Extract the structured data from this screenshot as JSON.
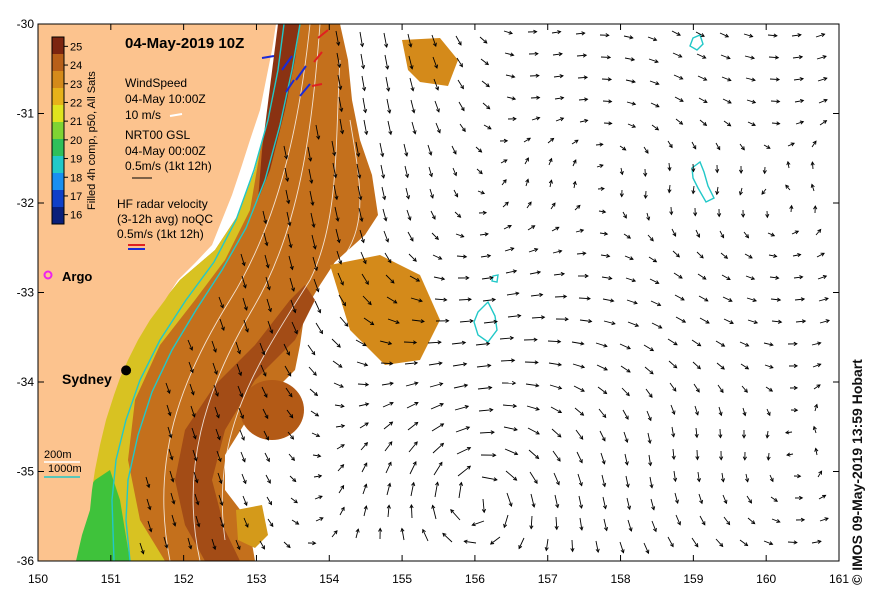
{
  "map": {
    "title": "04-May-2019 10Z",
    "credit": "© IMOS 09-May-2019 13:59 Hobart",
    "lon_ticks": [
      "150",
      "151",
      "152",
      "153",
      "154",
      "155",
      "156",
      "157",
      "158",
      "159",
      "160",
      "161"
    ],
    "lat_ticks": [
      "-30",
      "-31",
      "-32",
      "-33",
      "-34",
      "-35",
      "-36"
    ],
    "lon_range": [
      150,
      161
    ],
    "lat_range": [
      -36,
      -30
    ]
  },
  "colorbar": {
    "label": "Filled 4h comp, p50, All Sats",
    "ticks": [
      "25",
      "24",
      "23",
      "22",
      "21",
      "20",
      "19",
      "18",
      "17",
      "16"
    ],
    "range": [
      15.5,
      25.5
    ],
    "colors": [
      "#0a1f7a",
      "#1040c8",
      "#1a8ff0",
      "#22c9c8",
      "#2fbf5a",
      "#7fd433",
      "#e0e41e",
      "#e7b21a",
      "#d58a1a",
      "#b85f18",
      "#7c2510"
    ]
  },
  "legend": {
    "wind": {
      "title": "WindSpeed",
      "time": "04-May 10:00Z",
      "scale": "10 m/s"
    },
    "nrt": {
      "title": "NRT00 GSL",
      "time": "04-May 00:00Z",
      "scale": "0.5m/s (1kt 12h)"
    },
    "hf": {
      "title": "HF radar velocity",
      "avg": "(3-12h avg) noQC",
      "scale": "0.5m/s (1kt 12h)"
    },
    "depth": {
      "c200": "200m",
      "c1000": "1000m"
    }
  },
  "places": {
    "argo": {
      "label": "Argo",
      "color": "#ee22ee"
    },
    "sydney": {
      "label": "Sydney",
      "lon": 151.21,
      "lat": -33.87
    }
  },
  "colors": {
    "land": "#fcc38e",
    "contour": "#22c8c8",
    "arrow": "#000000"
  }
}
